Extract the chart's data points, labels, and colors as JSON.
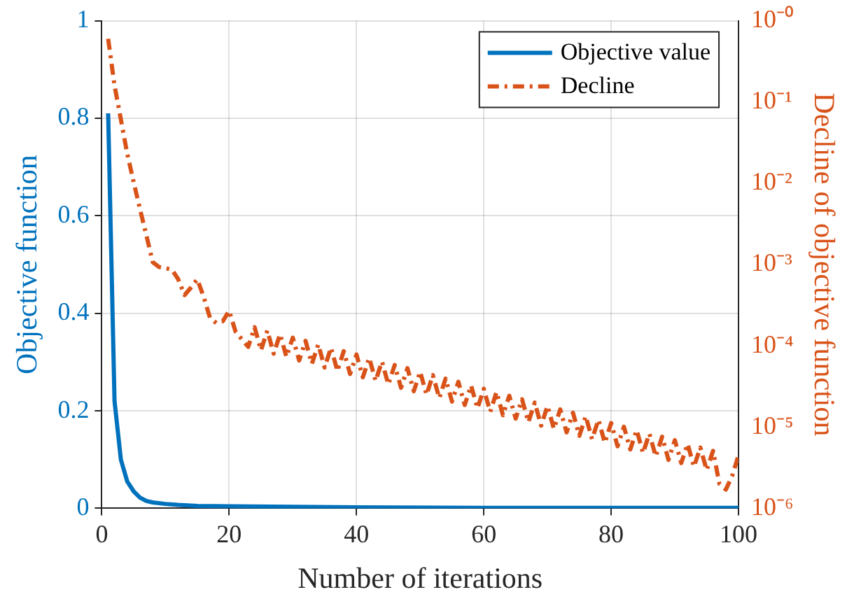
{
  "chart_data": {
    "type": "line",
    "xlabel": "Number of iterations",
    "ylabel": "Objective function",
    "y2label": "Decline of objective function",
    "xlim": [
      0,
      100
    ],
    "xticks": [
      0,
      20,
      40,
      60,
      80,
      100
    ],
    "ylim": [
      0,
      1
    ],
    "yticks": [
      0,
      0.2,
      0.4,
      0.6,
      0.8,
      1
    ],
    "y2lim": [
      1e-06,
      1
    ],
    "y2ticks": [
      {
        "value": 1e-06,
        "label": "10⁻⁶"
      },
      {
        "value": 1e-05,
        "label": "10⁻⁵"
      },
      {
        "value": 0.0001,
        "label": "10⁻⁴"
      },
      {
        "value": 0.001,
        "label": "10⁻³"
      },
      {
        "value": 0.01,
        "label": "10⁻²"
      },
      {
        "value": 0.1,
        "label": "10⁻¹"
      },
      {
        "value": 1,
        "label": "10⁻⁰"
      }
    ],
    "log": "y2",
    "grid": true,
    "legend": "top right",
    "series": [
      {
        "name": "Objective value",
        "color": "#0072bd",
        "line_style": "solid",
        "x": [
          1,
          2,
          3,
          4,
          5,
          6,
          7,
          8,
          10,
          12,
          15,
          20,
          30,
          40,
          60,
          100
        ],
        "values": [
          0.81,
          0.22,
          0.1,
          0.055,
          0.035,
          0.022,
          0.015,
          0.012,
          0.009,
          0.007,
          0.005,
          0.004,
          0.003,
          0.002,
          0.001,
          0.001
        ]
      },
      {
        "name": "Decline",
        "color": "#d95319",
        "line_style": "dashed",
        "axis": "y2",
        "x": [
          1,
          2,
          3,
          4,
          5,
          6,
          7,
          8,
          9,
          10,
          11,
          12,
          13,
          14,
          15,
          16,
          17,
          18,
          19,
          20,
          21,
          22,
          23,
          24,
          25,
          26,
          27,
          28,
          29,
          30,
          31,
          32,
          33,
          34,
          35,
          36,
          37,
          38,
          39,
          40,
          41,
          42,
          43,
          44,
          45,
          46,
          47,
          48,
          49,
          50,
          51,
          52,
          53,
          54,
          55,
          56,
          57,
          58,
          59,
          60,
          61,
          62,
          63,
          64,
          65,
          66,
          67,
          68,
          69,
          70,
          71,
          72,
          73,
          74,
          75,
          76,
          77,
          78,
          79,
          80,
          81,
          82,
          83,
          84,
          85,
          86,
          87,
          88,
          89,
          90,
          91,
          92,
          93,
          94,
          95,
          96,
          97,
          98,
          99,
          100
        ],
        "values": [
          0.6,
          0.16,
          0.061,
          0.023,
          0.0104,
          0.0048,
          0.0023,
          0.00107,
          0.00093,
          0.0009,
          0.00087,
          0.00066,
          0.00042,
          0.00052,
          0.00066,
          0.0004,
          0.00022,
          0.00019,
          0.0002,
          0.00027,
          0.00015,
          0.00012,
          9.7e-05,
          0.000169,
          8.8e-05,
          0.000154,
          8e-05,
          0.000139,
          7.3e-05,
          0.000126,
          6.6e-05,
          0.000115,
          6e-05,
          0.000104,
          5.4e-05,
          9.5e-05,
          4.9e-05,
          8.6e-05,
          4.5e-05,
          7.8e-05,
          4.1e-05,
          7.1e-05,
          3.7e-05,
          6.4e-05,
          3.35e-05,
          5.8e-05,
          3.04e-05,
          5.3e-05,
          2.76e-05,
          4.8e-05,
          2.5e-05,
          4.35e-05,
          2.27e-05,
          3.95e-05,
          2.06e-05,
          3.6e-05,
          1.87e-05,
          3.25e-05,
          1.7e-05,
          2.95e-05,
          1.54e-05,
          2.7e-05,
          1.4e-05,
          2.43e-05,
          1.27e-05,
          2.2e-05,
          1.15e-05,
          2e-05,
          1.04e-05,
          1.82e-05,
          9.5e-06,
          1.65e-05,
          8.6e-06,
          1.5e-05,
          7.8e-06,
          1.36e-05,
          7.1e-06,
          1.23e-05,
          6.4e-06,
          1.12e-05,
          5.8e-06,
          1.01e-05,
          5.3e-06,
          9.2e-06,
          4.8e-06,
          8.3e-06,
          4.35e-06,
          7.6e-06,
          3.95e-06,
          6.9e-06,
          3.6e-06,
          6.2e-06,
          3.25e-06,
          5.6e-06,
          2.95e-06,
          5.1e-06,
          2e-06,
          1.7e-06,
          2.5e-06,
          4.5e-06
        ]
      }
    ]
  }
}
